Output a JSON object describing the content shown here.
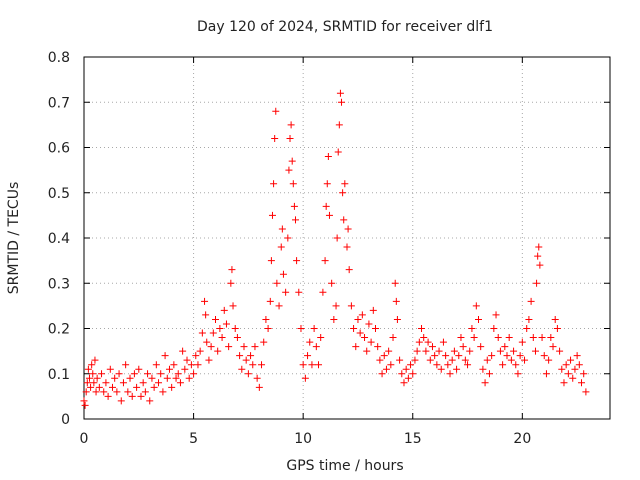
{
  "chart_data": {
    "type": "scatter",
    "title": "Day 120 of 2024, SRMTID for receiver dlf1",
    "xlabel": "GPS time / hours",
    "ylabel": "SRMTID / TECUs",
    "xlim": [
      0,
      24
    ],
    "ylim": [
      0,
      0.8
    ],
    "xticks": [
      0,
      5,
      10,
      15,
      20
    ],
    "xtick_labels": [
      "0",
      "5",
      "10",
      "15",
      "20"
    ],
    "yticks": [
      0,
      0.1,
      0.2,
      0.3,
      0.4,
      0.5,
      0.6,
      0.7,
      0.8
    ],
    "ytick_labels": [
      "0",
      "0.1",
      "0.2",
      "0.3",
      "0.4",
      "0.5",
      "0.6",
      "0.7",
      "0.8"
    ],
    "grid": true,
    "marker": "+",
    "color": "#ff0000",
    "series": [
      {
        "name": "SRMTID",
        "points": [
          [
            0.0,
            0.04
          ],
          [
            0.05,
            0.03
          ],
          [
            0.1,
            0.06
          ],
          [
            0.15,
            0.08
          ],
          [
            0.2,
            0.11
          ],
          [
            0.25,
            0.09
          ],
          [
            0.3,
            0.07
          ],
          [
            0.35,
            0.12
          ],
          [
            0.4,
            0.1
          ],
          [
            0.45,
            0.08
          ],
          [
            0.5,
            0.13
          ],
          [
            0.55,
            0.06
          ],
          [
            0.6,
            0.09
          ],
          [
            0.7,
            0.07
          ],
          [
            0.8,
            0.1
          ],
          [
            0.9,
            0.06
          ],
          [
            1.0,
            0.08
          ],
          [
            1.1,
            0.05
          ],
          [
            1.2,
            0.11
          ],
          [
            1.3,
            0.07
          ],
          [
            1.4,
            0.09
          ],
          [
            1.5,
            0.06
          ],
          [
            1.6,
            0.1
          ],
          [
            1.7,
            0.04
          ],
          [
            1.8,
            0.08
          ],
          [
            1.9,
            0.12
          ],
          [
            2.0,
            0.06
          ],
          [
            2.1,
            0.09
          ],
          [
            2.2,
            0.05
          ],
          [
            2.3,
            0.1
          ],
          [
            2.4,
            0.07
          ],
          [
            2.5,
            0.11
          ],
          [
            2.6,
            0.05
          ],
          [
            2.7,
            0.08
          ],
          [
            2.8,
            0.06
          ],
          [
            2.9,
            0.1
          ],
          [
            3.0,
            0.04
          ],
          [
            3.1,
            0.09
          ],
          [
            3.2,
            0.07
          ],
          [
            3.3,
            0.12
          ],
          [
            3.4,
            0.08
          ],
          [
            3.5,
            0.1
          ],
          [
            3.6,
            0.06
          ],
          [
            3.7,
            0.14
          ],
          [
            3.8,
            0.09
          ],
          [
            3.9,
            0.11
          ],
          [
            4.0,
            0.07
          ],
          [
            4.1,
            0.12
          ],
          [
            4.2,
            0.09
          ],
          [
            4.3,
            0.1
          ],
          [
            4.4,
            0.08
          ],
          [
            4.5,
            0.15
          ],
          [
            4.6,
            0.11
          ],
          [
            4.7,
            0.13
          ],
          [
            4.8,
            0.09
          ],
          [
            4.9,
            0.12
          ],
          [
            5.0,
            0.1
          ],
          [
            5.1,
            0.14
          ],
          [
            5.2,
            0.12
          ],
          [
            5.3,
            0.15
          ],
          [
            5.4,
            0.19
          ],
          [
            5.5,
            0.26
          ],
          [
            5.55,
            0.23
          ],
          [
            5.6,
            0.17
          ],
          [
            5.7,
            0.13
          ],
          [
            5.8,
            0.16
          ],
          [
            5.9,
            0.19
          ],
          [
            6.0,
            0.22
          ],
          [
            6.1,
            0.15
          ],
          [
            6.2,
            0.2
          ],
          [
            6.3,
            0.18
          ],
          [
            6.4,
            0.24
          ],
          [
            6.5,
            0.21
          ],
          [
            6.6,
            0.16
          ],
          [
            6.7,
            0.3
          ],
          [
            6.75,
            0.33
          ],
          [
            6.8,
            0.25
          ],
          [
            6.9,
            0.2
          ],
          [
            7.0,
            0.18
          ],
          [
            7.1,
            0.14
          ],
          [
            7.2,
            0.11
          ],
          [
            7.3,
            0.16
          ],
          [
            7.4,
            0.13
          ],
          [
            7.5,
            0.1
          ],
          [
            7.6,
            0.14
          ],
          [
            7.7,
            0.12
          ],
          [
            7.8,
            0.16
          ],
          [
            7.9,
            0.09
          ],
          [
            8.0,
            0.07
          ],
          [
            8.1,
            0.12
          ],
          [
            8.2,
            0.17
          ],
          [
            8.3,
            0.22
          ],
          [
            8.4,
            0.2
          ],
          [
            8.5,
            0.26
          ],
          [
            8.55,
            0.35
          ],
          [
            8.6,
            0.45
          ],
          [
            8.65,
            0.52
          ],
          [
            8.7,
            0.62
          ],
          [
            8.75,
            0.68
          ],
          [
            8.8,
            0.3
          ],
          [
            8.9,
            0.25
          ],
          [
            9.0,
            0.38
          ],
          [
            9.05,
            0.42
          ],
          [
            9.1,
            0.32
          ],
          [
            9.2,
            0.28
          ],
          [
            9.3,
            0.4
          ],
          [
            9.35,
            0.55
          ],
          [
            9.4,
            0.62
          ],
          [
            9.45,
            0.65
          ],
          [
            9.5,
            0.57
          ],
          [
            9.55,
            0.52
          ],
          [
            9.6,
            0.47
          ],
          [
            9.65,
            0.44
          ],
          [
            9.7,
            0.35
          ],
          [
            9.8,
            0.28
          ],
          [
            9.9,
            0.2
          ],
          [
            10.0,
            0.12
          ],
          [
            10.1,
            0.09
          ],
          [
            10.2,
            0.14
          ],
          [
            10.3,
            0.17
          ],
          [
            10.4,
            0.12
          ],
          [
            10.5,
            0.2
          ],
          [
            10.6,
            0.16
          ],
          [
            10.7,
            0.12
          ],
          [
            10.8,
            0.18
          ],
          [
            10.9,
            0.28
          ],
          [
            11.0,
            0.35
          ],
          [
            11.05,
            0.47
          ],
          [
            11.1,
            0.52
          ],
          [
            11.15,
            0.58
          ],
          [
            11.2,
            0.45
          ],
          [
            11.3,
            0.3
          ],
          [
            11.4,
            0.22
          ],
          [
            11.5,
            0.25
          ],
          [
            11.55,
            0.4
          ],
          [
            11.6,
            0.59
          ],
          [
            11.65,
            0.65
          ],
          [
            11.7,
            0.72
          ],
          [
            11.75,
            0.7
          ],
          [
            11.8,
            0.5
          ],
          [
            11.85,
            0.44
          ],
          [
            11.9,
            0.52
          ],
          [
            12.0,
            0.38
          ],
          [
            12.05,
            0.42
          ],
          [
            12.1,
            0.33
          ],
          [
            12.2,
            0.25
          ],
          [
            12.3,
            0.2
          ],
          [
            12.4,
            0.16
          ],
          [
            12.5,
            0.22
          ],
          [
            12.6,
            0.19
          ],
          [
            12.7,
            0.23
          ],
          [
            12.8,
            0.18
          ],
          [
            12.9,
            0.15
          ],
          [
            13.0,
            0.21
          ],
          [
            13.1,
            0.17
          ],
          [
            13.2,
            0.24
          ],
          [
            13.3,
            0.2
          ],
          [
            13.4,
            0.16
          ],
          [
            13.5,
            0.13
          ],
          [
            13.6,
            0.1
          ],
          [
            13.7,
            0.14
          ],
          [
            13.8,
            0.11
          ],
          [
            13.9,
            0.15
          ],
          [
            14.0,
            0.12
          ],
          [
            14.1,
            0.18
          ],
          [
            14.2,
            0.3
          ],
          [
            14.25,
            0.26
          ],
          [
            14.3,
            0.22
          ],
          [
            14.4,
            0.13
          ],
          [
            14.5,
            0.1
          ],
          [
            14.6,
            0.08
          ],
          [
            14.7,
            0.11
          ],
          [
            14.8,
            0.09
          ],
          [
            14.9,
            0.12
          ],
          [
            15.0,
            0.1
          ],
          [
            15.1,
            0.13
          ],
          [
            15.2,
            0.15
          ],
          [
            15.3,
            0.17
          ],
          [
            15.4,
            0.2
          ],
          [
            15.5,
            0.18
          ],
          [
            15.6,
            0.15
          ],
          [
            15.7,
            0.17
          ],
          [
            15.8,
            0.13
          ],
          [
            15.9,
            0.16
          ],
          [
            16.0,
            0.14
          ],
          [
            16.1,
            0.12
          ],
          [
            16.2,
            0.15
          ],
          [
            16.3,
            0.11
          ],
          [
            16.4,
            0.17
          ],
          [
            16.5,
            0.14
          ],
          [
            16.6,
            0.12
          ],
          [
            16.7,
            0.1
          ],
          [
            16.8,
            0.13
          ],
          [
            16.9,
            0.15
          ],
          [
            17.0,
            0.11
          ],
          [
            17.1,
            0.14
          ],
          [
            17.2,
            0.18
          ],
          [
            17.3,
            0.16
          ],
          [
            17.4,
            0.13
          ],
          [
            17.5,
            0.12
          ],
          [
            17.6,
            0.15
          ],
          [
            17.7,
            0.2
          ],
          [
            17.8,
            0.18
          ],
          [
            17.9,
            0.25
          ],
          [
            18.0,
            0.22
          ],
          [
            18.1,
            0.16
          ],
          [
            18.2,
            0.11
          ],
          [
            18.3,
            0.08
          ],
          [
            18.4,
            0.13
          ],
          [
            18.5,
            0.1
          ],
          [
            18.6,
            0.14
          ],
          [
            18.7,
            0.2
          ],
          [
            18.8,
            0.23
          ],
          [
            18.9,
            0.18
          ],
          [
            19.0,
            0.15
          ],
          [
            19.1,
            0.12
          ],
          [
            19.2,
            0.16
          ],
          [
            19.3,
            0.14
          ],
          [
            19.4,
            0.18
          ],
          [
            19.5,
            0.13
          ],
          [
            19.6,
            0.15
          ],
          [
            19.7,
            0.12
          ],
          [
            19.8,
            0.1
          ],
          [
            19.9,
            0.14
          ],
          [
            20.0,
            0.17
          ],
          [
            20.1,
            0.13
          ],
          [
            20.2,
            0.2
          ],
          [
            20.3,
            0.22
          ],
          [
            20.4,
            0.26
          ],
          [
            20.5,
            0.18
          ],
          [
            20.6,
            0.15
          ],
          [
            20.65,
            0.3
          ],
          [
            20.7,
            0.36
          ],
          [
            20.75,
            0.38
          ],
          [
            20.8,
            0.34
          ],
          [
            20.9,
            0.18
          ],
          [
            21.0,
            0.14
          ],
          [
            21.1,
            0.1
          ],
          [
            21.2,
            0.13
          ],
          [
            21.3,
            0.18
          ],
          [
            21.4,
            0.16
          ],
          [
            21.5,
            0.22
          ],
          [
            21.6,
            0.2
          ],
          [
            21.7,
            0.15
          ],
          [
            21.8,
            0.11
          ],
          [
            21.9,
            0.08
          ],
          [
            22.0,
            0.12
          ],
          [
            22.1,
            0.1
          ],
          [
            22.2,
            0.13
          ],
          [
            22.3,
            0.09
          ],
          [
            22.4,
            0.11
          ],
          [
            22.5,
            0.14
          ],
          [
            22.6,
            0.12
          ],
          [
            22.7,
            0.08
          ],
          [
            22.8,
            0.1
          ],
          [
            22.9,
            0.06
          ]
        ]
      }
    ]
  }
}
